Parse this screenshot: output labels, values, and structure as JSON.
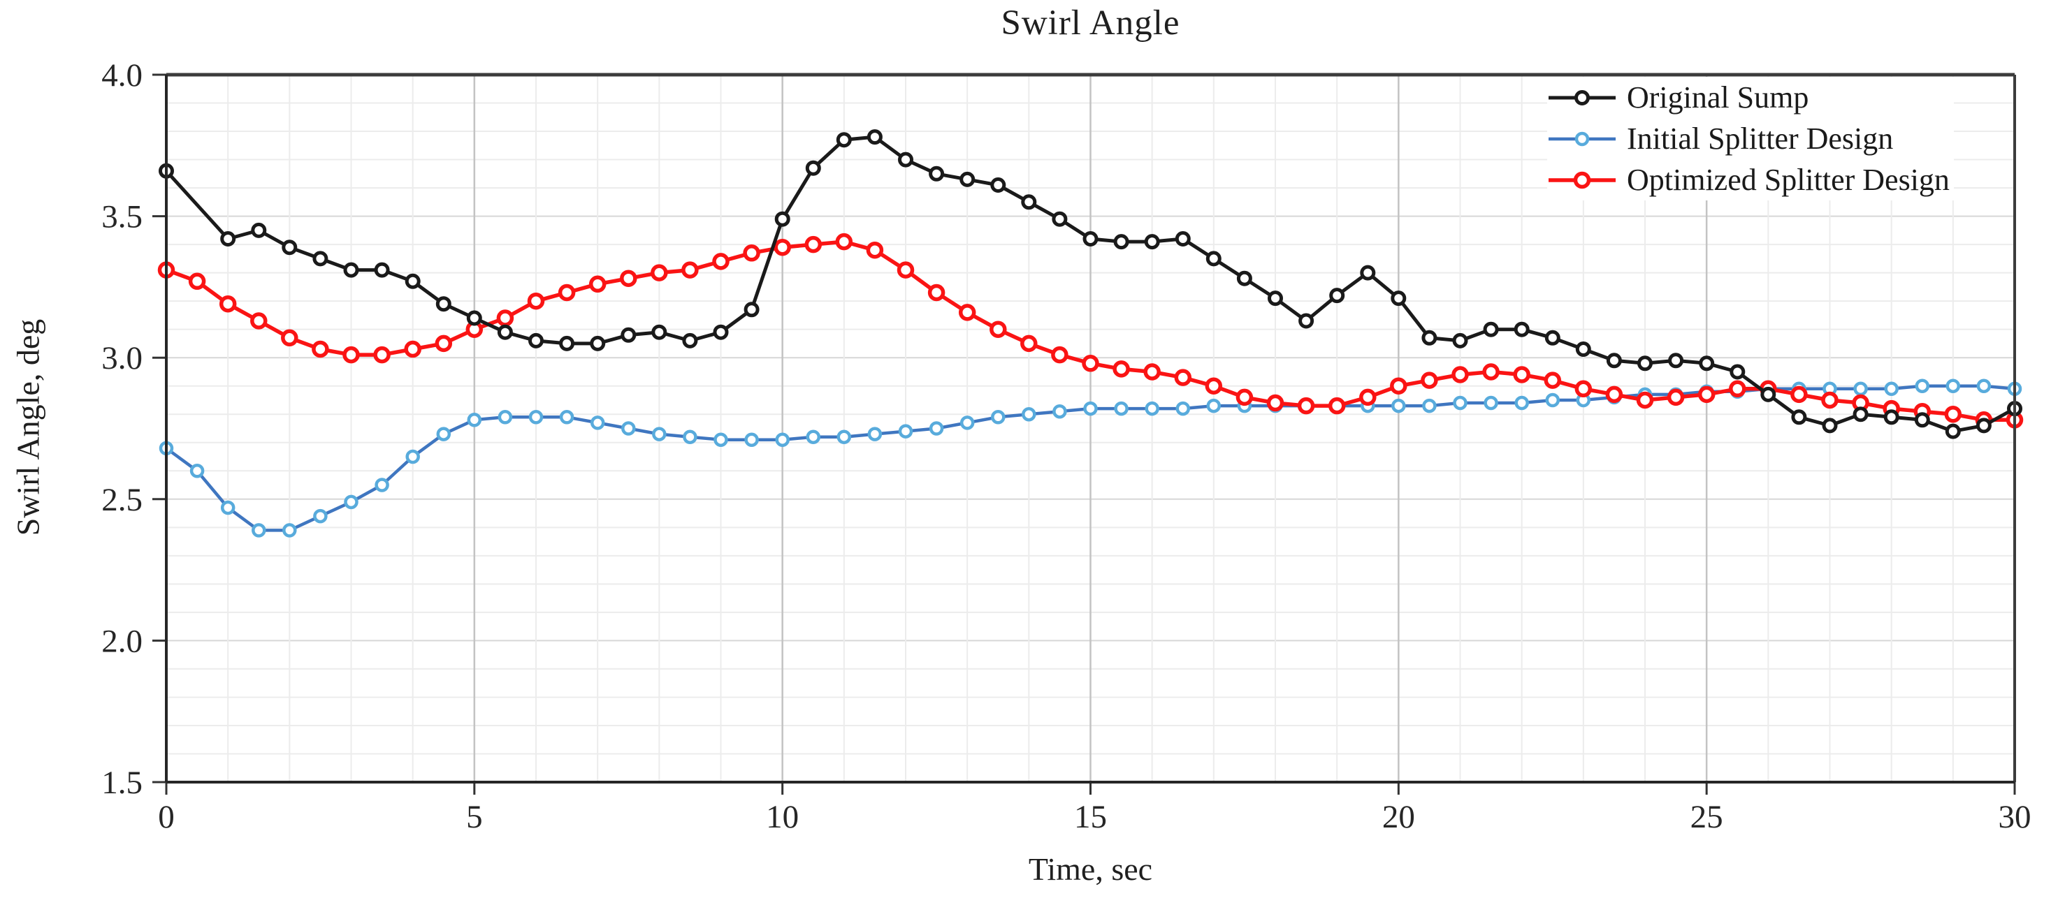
{
  "chart_data": {
    "type": "line",
    "title": "Swirl Angle",
    "xlabel": "Time, sec",
    "ylabel": "Swirl Angle, deg",
    "xlim": [
      0,
      30
    ],
    "ylim": [
      1.5,
      4.0
    ],
    "x_ticks": [
      0,
      5,
      10,
      15,
      20,
      25,
      30
    ],
    "y_ticks": [
      1.5,
      2.0,
      2.5,
      3.0,
      3.5,
      4.0
    ],
    "minor_grid": {
      "x_step": 1,
      "y_step": 0.1,
      "visible": true
    },
    "legend_position": "top-right",
    "colors": {
      "minor_grid": "#ececec",
      "major_grid_h": "#d7d7d7",
      "major_grid_v": "#c3c3c3",
      "axis": "#333333",
      "text": "#1f1f1f"
    },
    "series": [
      {
        "name": "Original Sump",
        "line_color": "#1a1a1a",
        "marker_color": "#1a1a1a",
        "line_width": 5,
        "marker_radius": 8.5,
        "marker_stroke": 5,
        "x": [
          0,
          1,
          1.5,
          2,
          2.5,
          3,
          3.5,
          4,
          4.5,
          5,
          5.5,
          6,
          6.5,
          7,
          7.5,
          8,
          8.5,
          9,
          9.5,
          10,
          10.5,
          11,
          11.5,
          12,
          12.5,
          13,
          13.5,
          14,
          14.5,
          15,
          15.5,
          16,
          16.5,
          17,
          17.5,
          18,
          18.5,
          19,
          19.5,
          20,
          20.5,
          21,
          21.5,
          22,
          22.5,
          23,
          23.5,
          24,
          24.5,
          25,
          25.5,
          26,
          26.5,
          27,
          27.5,
          28,
          28.5,
          29,
          29.5,
          30
        ],
        "y": [
          3.66,
          3.42,
          3.45,
          3.39,
          3.35,
          3.31,
          3.31,
          3.27,
          3.19,
          3.14,
          3.09,
          3.06,
          3.05,
          3.05,
          3.08,
          3.09,
          3.06,
          3.09,
          3.17,
          3.49,
          3.67,
          3.77,
          3.78,
          3.7,
          3.65,
          3.63,
          3.61,
          3.55,
          3.49,
          3.42,
          3.41,
          3.41,
          3.42,
          3.35,
          3.28,
          3.21,
          3.13,
          3.22,
          3.3,
          3.21,
          3.07,
          3.06,
          3.1,
          3.1,
          3.07,
          3.03,
          2.99,
          2.98,
          2.99,
          2.98,
          2.95,
          2.87,
          2.79,
          2.76,
          2.8,
          2.79,
          2.78,
          2.74,
          2.76,
          2.82
        ]
      },
      {
        "name": "Initial Splitter Design",
        "line_color": "#3f76c0",
        "marker_color": "#58abdc",
        "line_width": 4.5,
        "marker_radius": 8,
        "marker_stroke": 4.5,
        "x": [
          0,
          0.5,
          1,
          1.5,
          2,
          2.5,
          3,
          3.5,
          4,
          4.5,
          5,
          5.5,
          6,
          6.5,
          7,
          7.5,
          8,
          8.5,
          9,
          9.5,
          10,
          10.5,
          11,
          11.5,
          12,
          12.5,
          13,
          13.5,
          14,
          14.5,
          15,
          15.5,
          16,
          16.5,
          17,
          17.5,
          18,
          18.5,
          19,
          19.5,
          20,
          20.5,
          21,
          21.5,
          22,
          22.5,
          23,
          23.5,
          24,
          24.5,
          25,
          25.5,
          26,
          26.5,
          27,
          27.5,
          28,
          28.5,
          29,
          29.5,
          30
        ],
        "y": [
          2.68,
          2.6,
          2.47,
          2.39,
          2.39,
          2.44,
          2.49,
          2.55,
          2.65,
          2.73,
          2.78,
          2.79,
          2.79,
          2.79,
          2.77,
          2.75,
          2.73,
          2.72,
          2.71,
          2.71,
          2.71,
          2.72,
          2.72,
          2.73,
          2.74,
          2.75,
          2.77,
          2.79,
          2.8,
          2.81,
          2.82,
          2.82,
          2.82,
          2.82,
          2.83,
          2.83,
          2.83,
          2.83,
          2.83,
          2.83,
          2.83,
          2.83,
          2.84,
          2.84,
          2.84,
          2.85,
          2.85,
          2.86,
          2.87,
          2.87,
          2.88,
          2.88,
          2.89,
          2.89,
          2.89,
          2.89,
          2.89,
          2.9,
          2.9,
          2.9,
          2.89
        ]
      },
      {
        "name": "Optimized Splitter Design",
        "line_color": "#fa1414",
        "marker_color": "#fa1414",
        "line_width": 5.5,
        "marker_radius": 9.5,
        "marker_stroke": 5.5,
        "x": [
          0,
          0.5,
          1,
          1.5,
          2,
          2.5,
          3,
          3.5,
          4,
          4.5,
          5,
          5.5,
          6,
          6.5,
          7,
          7.5,
          8,
          8.5,
          9,
          9.5,
          10,
          10.5,
          11,
          11.5,
          12,
          12.5,
          13,
          13.5,
          14,
          14.5,
          15,
          15.5,
          16,
          16.5,
          17,
          17.5,
          18,
          18.5,
          19,
          19.5,
          20,
          20.5,
          21,
          21.5,
          22,
          22.5,
          23,
          23.5,
          24,
          24.5,
          25,
          25.5,
          26,
          26.5,
          27,
          27.5,
          28,
          28.5,
          29,
          29.5,
          30
        ],
        "y": [
          3.31,
          3.27,
          3.19,
          3.13,
          3.07,
          3.03,
          3.01,
          3.01,
          3.03,
          3.05,
          3.1,
          3.14,
          3.2,
          3.23,
          3.26,
          3.28,
          3.3,
          3.31,
          3.34,
          3.37,
          3.39,
          3.4,
          3.41,
          3.38,
          3.31,
          3.23,
          3.16,
          3.1,
          3.05,
          3.01,
          2.98,
          2.96,
          2.95,
          2.93,
          2.9,
          2.86,
          2.84,
          2.83,
          2.83,
          2.86,
          2.9,
          2.92,
          2.94,
          2.95,
          2.94,
          2.92,
          2.89,
          2.87,
          2.85,
          2.86,
          2.87,
          2.89,
          2.89,
          2.87,
          2.85,
          2.84,
          2.82,
          2.81,
          2.8,
          2.78,
          2.78
        ]
      }
    ]
  }
}
